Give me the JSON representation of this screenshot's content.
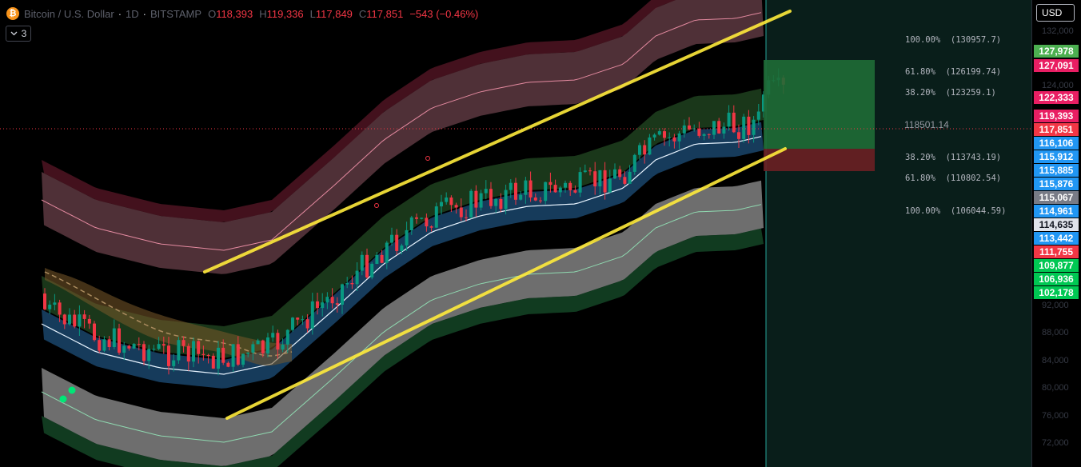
{
  "legend": {
    "coin_glyph": "₿",
    "symbol": "Bitcoin / U.S. Dollar",
    "interval": "1D",
    "exchange": "BITSTAMP",
    "open_label": "O",
    "open": "118,393",
    "high_label": "H",
    "high": "119,336",
    "low_label": "L",
    "low": "117,849",
    "close_label": "C",
    "close": "117,851",
    "change": "−543 (−0.46%)",
    "separator": "·"
  },
  "indicators_toggle": {
    "icon": "chevron-down-icon",
    "count": "3"
  },
  "currency_button": "USD",
  "price_axis_ticks": [
    "132,000",
    "124,000",
    "92,000",
    "88,000",
    "84,000",
    "80,000",
    "76,000",
    "72,000"
  ],
  "price_tags": [
    {
      "value": "127,978",
      "color": "#4caf50"
    },
    {
      "value": "127,091",
      "color": "#e91e63"
    },
    {
      "value": "122,333",
      "color": "#e91e63"
    },
    {
      "value": "119,393",
      "color": "#e91e63"
    },
    {
      "value": "117,851",
      "color": "#f23645"
    },
    {
      "value": "116,106",
      "color": "#2196f3"
    },
    {
      "value": "115,912",
      "color": "#2196f3"
    },
    {
      "value": "115,885",
      "color": "#2196f3"
    },
    {
      "value": "115,876",
      "color": "#2196f3"
    },
    {
      "value": "115,067",
      "color": "#787b86"
    },
    {
      "value": "114,961",
      "color": "#2196f3"
    },
    {
      "value": "114,635",
      "color": "#e0e3eb"
    },
    {
      "value": "113,442",
      "color": "#2196f3"
    },
    {
      "value": "111,755",
      "color": "#f23645"
    },
    {
      "value": "109,877",
      "color": "#00c853"
    },
    {
      "value": "106,936",
      "color": "#00c853"
    },
    {
      "value": "102,178",
      "color": "#00c853"
    }
  ],
  "fib_levels": [
    {
      "label": "100.00%  (130957.7)"
    },
    {
      "label": "61.80%  (126199.74)"
    },
    {
      "label": "38.20%  (123259.1)"
    },
    {
      "label": "38.20%  (113743.19)"
    },
    {
      "label": "61.80%  (110802.54)"
    },
    {
      "label": "100.00%  (106044.59)"
    }
  ],
  "current_price_label": "118501.14",
  "colors": {
    "up": "#089981",
    "down": "#f23645",
    "trendline": "#ffeb3b",
    "profit_zone": "#1f6b36",
    "loss_zone": "#6b1f24"
  }
}
